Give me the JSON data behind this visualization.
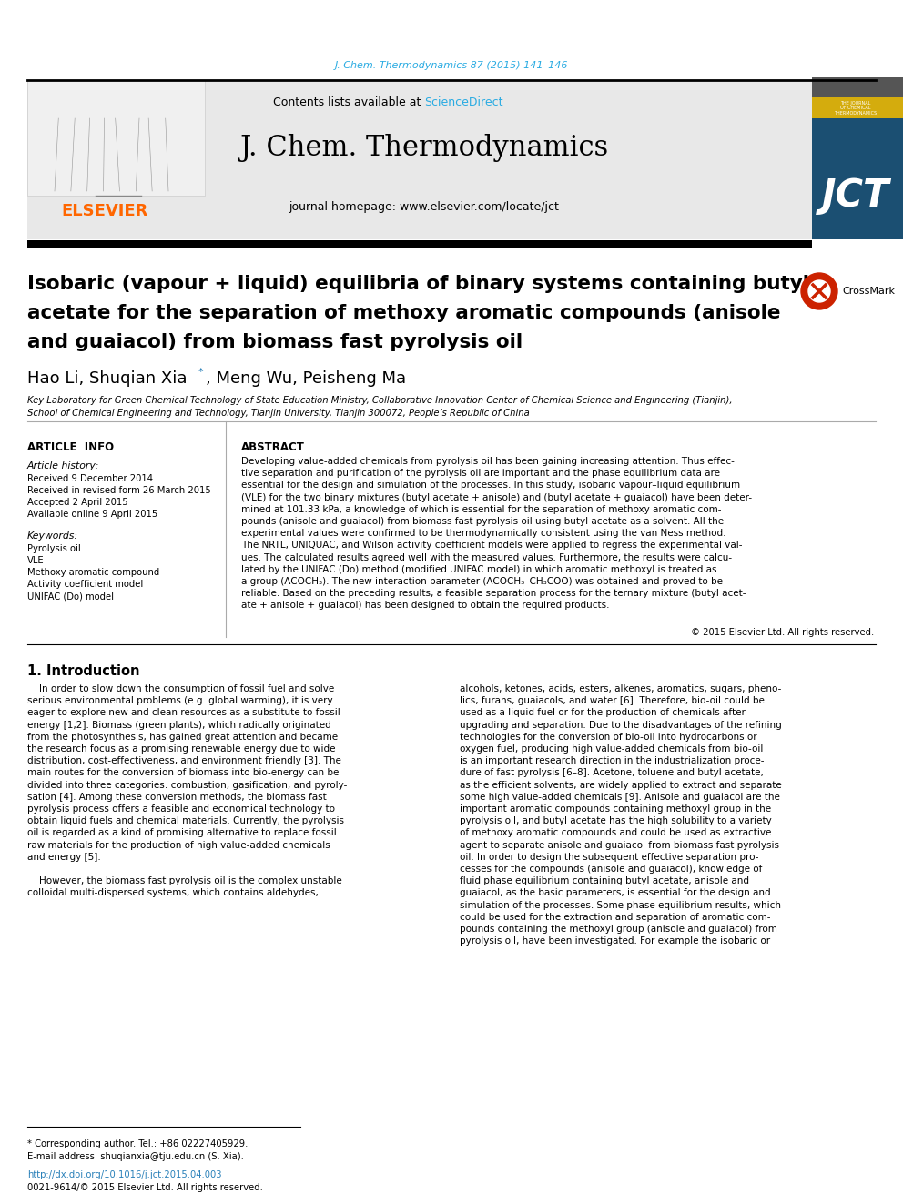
{
  "journal_ref": "J. Chem. Thermodynamics 87 (2015) 141–146",
  "journal_ref_color": "#29ABE2",
  "contents_text": "Contents lists available at ",
  "sciencedirect_text": "ScienceDirect",
  "sciencedirect_color": "#29ABE2",
  "journal_name": "J. Chem. Thermodynamics",
  "journal_homepage": "journal homepage: www.elsevier.com/locate/jct",
  "elsevier_color": "#FF6600",
  "header_bg": "#E8E8E8",
  "article_info_title": "ARTICLE  INFO",
  "article_history_title": "Article history:",
  "received": "Received 9 December 2014",
  "received_revised": "Received in revised form 26 March 2015",
  "accepted": "Accepted 2 April 2015",
  "available": "Available online 9 April 2015",
  "keywords_title": "Keywords:",
  "keywords": [
    "Pyrolysis oil",
    "VLE",
    "Methoxy aromatic compound",
    "Activity coefficient model",
    "UNIFAC (Do) model"
  ],
  "abstract_title": "ABSTRACT",
  "copyright": "© 2015 Elsevier Ltd. All rights reserved.",
  "section1_title": "1. Introduction",
  "footnote_star": "* Corresponding author. Tel.: +86 02227405929.",
  "footnote_email": "E-mail address: shuqianxia@tju.edu.cn (S. Xia).",
  "doi_text": "http://dx.doi.org/10.1016/j.jct.2015.04.003",
  "copyright_footer": "0021-9614/© 2015 Elsevier Ltd. All rights reserved.",
  "background_color": "#FFFFFF",
  "text_color": "#000000",
  "separator_color": "#000000",
  "light_separator_color": "#AAAAAA",
  "abstract_lines": [
    "Developing value-added chemicals from pyrolysis oil has been gaining increasing attention. Thus effec-",
    "tive separation and purification of the pyrolysis oil are important and the phase equilibrium data are",
    "essential for the design and simulation of the processes. In this study, isobaric vapour–liquid equilibrium",
    "(VLE) for the two binary mixtures (butyl acetate + anisole) and (butyl acetate + guaiacol) have been deter-",
    "mined at 101.33 kPa, a knowledge of which is essential for the separation of methoxy aromatic com-",
    "pounds (anisole and guaiacol) from biomass fast pyrolysis oil using butyl acetate as a solvent. All the",
    "experimental values were confirmed to be thermodynamically consistent using the van Ness method.",
    "The NRTL, UNIQUAC, and Wilson activity coefficient models were applied to regress the experimental val-",
    "ues. The calculated results agreed well with the measured values. Furthermore, the results were calcu-",
    "lated by the UNIFAC (Do) method (modified UNIFAC model) in which aromatic methoxyl is treated as",
    "a group (ACOCH₃). The new interaction parameter (ACOCH₃–CH₃COO) was obtained and proved to be",
    "reliable. Based on the preceding results, a feasible separation process for the ternary mixture (butyl acet-",
    "ate + anisole + guaiacol) has been designed to obtain the required products."
  ],
  "intro_left_lines": [
    "    In order to slow down the consumption of fossil fuel and solve",
    "serious environmental problems (e.g. global warming), it is very",
    "eager to explore new and clean resources as a substitute to fossil",
    "energy [1,2]. Biomass (green plants), which radically originated",
    "from the photosynthesis, has gained great attention and became",
    "the research focus as a promising renewable energy due to wide",
    "distribution, cost-effectiveness, and environment friendly [3]. The",
    "main routes for the conversion of biomass into bio-energy can be",
    "divided into three categories: combustion, gasification, and pyroly-",
    "sation [4]. Among these conversion methods, the biomass fast",
    "pyrolysis process offers a feasible and economical technology to",
    "obtain liquid fuels and chemical materials. Currently, the pyrolysis",
    "oil is regarded as a kind of promising alternative to replace fossil",
    "raw materials for the production of high value-added chemicals",
    "and energy [5].",
    "",
    "    However, the biomass fast pyrolysis oil is the complex unstable",
    "colloidal multi-dispersed systems, which contains aldehydes,"
  ],
  "intro_right_lines": [
    "alcohols, ketones, acids, esters, alkenes, aromatics, sugars, pheno-",
    "lics, furans, guaiacols, and water [6]. Therefore, bio-oil could be",
    "used as a liquid fuel or for the production of chemicals after",
    "upgrading and separation. Due to the disadvantages of the refining",
    "technologies for the conversion of bio-oil into hydrocarbons or",
    "oxygen fuel, producing high value-added chemicals from bio-oil",
    "is an important research direction in the industrialization proce-",
    "dure of fast pyrolysis [6–8]. Acetone, toluene and butyl acetate,",
    "as the efficient solvents, are widely applied to extract and separate",
    "some high value-added chemicals [9]. Anisole and guaiacol are the",
    "important aromatic compounds containing methoxyl group in the",
    "pyrolysis oil, and butyl acetate has the high solubility to a variety",
    "of methoxy aromatic compounds and could be used as extractive",
    "agent to separate anisole and guaiacol from biomass fast pyrolysis",
    "oil. In order to design the subsequent effective separation pro-",
    "cesses for the compounds (anisole and guaiacol), knowledge of",
    "fluid phase equilibrium containing butyl acetate, anisole and",
    "guaiacol, as the basic parameters, is essential for the design and",
    "simulation of the processes. Some phase equilibrium results, which",
    "could be used for the extraction and separation of aromatic com-",
    "pounds containing the methoxyl group (anisole and guaiacol) from",
    "pyrolysis oil, have been investigated. For example the isobaric or"
  ]
}
